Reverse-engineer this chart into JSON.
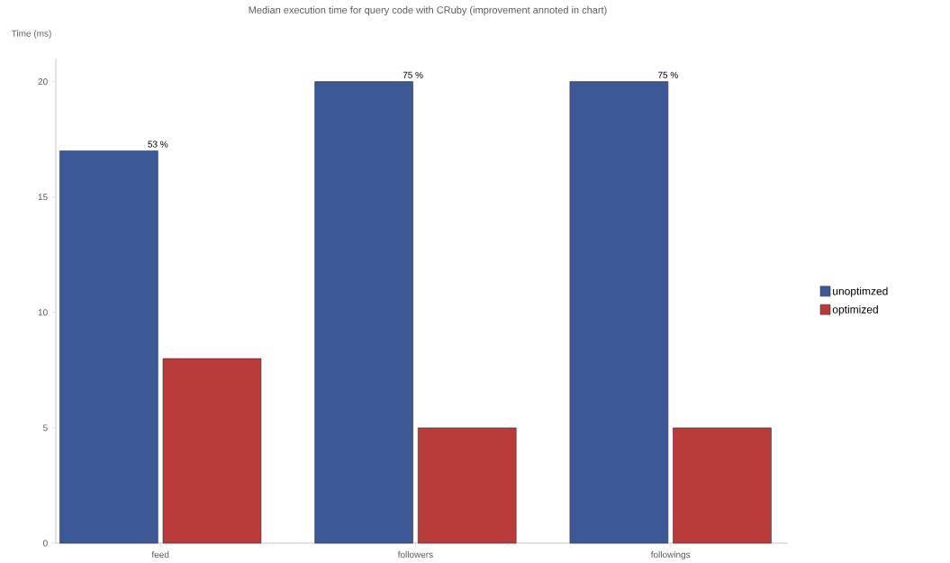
{
  "chart_data": {
    "type": "bar",
    "title": "Median execution time for query code with CRuby (improvement annoted in chart)",
    "ylabel": "Time (ms)",
    "categories": [
      "feed",
      "followers",
      "followings"
    ],
    "series": [
      {
        "name": "unoptimzed",
        "color": "#3c5896",
        "values": [
          17,
          20,
          20
        ]
      },
      {
        "name": "optimized",
        "color": "#b83b3a",
        "values": [
          8,
          5,
          5
        ]
      }
    ],
    "ylim": [
      0,
      21
    ],
    "yticks": [
      0,
      5,
      10,
      15,
      20
    ],
    "annotations": [
      {
        "text": "53 %",
        "x": "feed",
        "y": 17
      },
      {
        "text": "75 %",
        "x": "followers",
        "y": 20
      },
      {
        "text": "75 %",
        "x": "followings",
        "y": 20
      }
    ],
    "grid": false,
    "legend": "right"
  }
}
